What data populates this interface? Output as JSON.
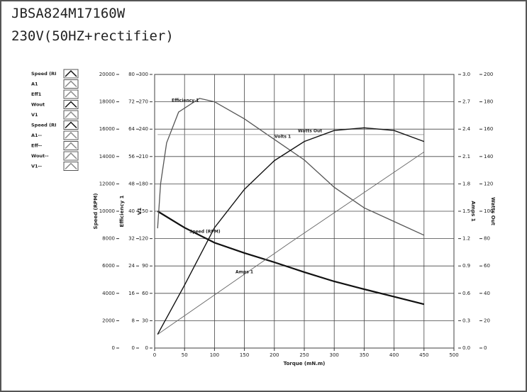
{
  "header": {
    "model": "JBSA824M17160W",
    "supply": "230V(50HZ+rectifier)"
  },
  "chart_data": {
    "type": "line",
    "xlabel": "Torque (mN.m)",
    "xlim": [
      0,
      500
    ],
    "xticks": [
      0,
      50,
      100,
      150,
      200,
      250,
      300,
      350,
      400,
      450,
      500
    ],
    "grid": true,
    "y_axes": [
      {
        "label": "Speed (RPM)",
        "side": "left",
        "lim": [
          0,
          20000
        ],
        "ticks": [
          0,
          2000,
          4000,
          6000,
          8000,
          10000,
          12000,
          14000,
          16000,
          18000,
          20000
        ]
      },
      {
        "label": "Efficiency 1",
        "side": "left",
        "lim": [
          0,
          80
        ],
        "ticks": [
          0,
          8,
          16,
          24,
          32,
          40,
          48,
          56,
          64,
          72,
          80
        ]
      },
      {
        "label": "V1",
        "side": "left",
        "lim": [
          0,
          300
        ],
        "ticks": [
          0,
          30,
          60,
          90,
          120,
          150,
          180,
          210,
          240,
          270,
          300
        ]
      },
      {
        "label": "Amps 1",
        "side": "right",
        "lim": [
          0,
          3
        ],
        "ticks": [
          {
            "value": 0,
            "label": "0.0"
          },
          0.3,
          0.6,
          0.9,
          1.2,
          1.5,
          1.8,
          2.1,
          2.4,
          2.7,
          {
            "value": 3,
            "label": "3.0"
          }
        ]
      },
      {
        "label": "Watts Out",
        "side": "right",
        "lim": [
          0,
          200
        ],
        "ticks": [
          0,
          20,
          40,
          60,
          80,
          100,
          120,
          140,
          160,
          180,
          200
        ]
      }
    ],
    "legend": [
      "Speed (RI",
      "A1",
      "Eff1",
      "Wout",
      "V1",
      "Speed (RI",
      "A1--",
      "Eff--",
      "Wout--",
      "V1--"
    ],
    "series": [
      {
        "name": "Speed (RPM)",
        "axis": 0,
        "color": "#111111",
        "x": [
          5,
          50,
          100,
          150,
          200,
          250,
          300,
          350,
          400,
          450
        ],
        "values": [
          10000,
          8800,
          7700,
          6950,
          6270,
          5550,
          4870,
          4300,
          3750,
          3200
        ]
      },
      {
        "name": "Efficiency 1",
        "axis": 1,
        "color": "#555555",
        "x": [
          5,
          10,
          20,
          40,
          75,
          100,
          150,
          200,
          250,
          300,
          350,
          400,
          450
        ],
        "values": [
          35,
          48,
          60,
          69,
          73,
          72,
          67,
          61,
          55,
          47,
          41,
          37,
          33
        ]
      },
      {
        "name": "Volts 1",
        "axis": 2,
        "color": "#888888",
        "x": [
          5,
          450
        ],
        "values": [
          234,
          234
        ]
      },
      {
        "name": "Amps 1",
        "axis": 3,
        "color": "#666666",
        "x": [
          5,
          225,
          450
        ],
        "values": [
          0.15,
          1.15,
          2.15
        ]
      },
      {
        "name": "Watts Out",
        "axis": 4,
        "color": "#111111",
        "x": [
          5,
          50,
          100,
          150,
          200,
          250,
          300,
          350,
          400,
          450
        ],
        "values": [
          10,
          46,
          88,
          116,
          137,
          151,
          159,
          161,
          159,
          151
        ]
      }
    ]
  }
}
